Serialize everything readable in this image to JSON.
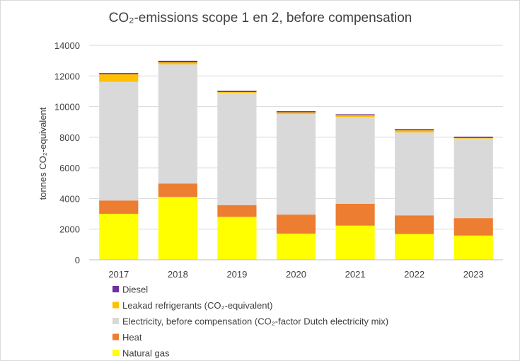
{
  "chart_data": {
    "type": "bar",
    "stacked": true,
    "title": "CO₂-emissions scope 1 en 2, before compensation",
    "xlabel": "",
    "ylabel": "tonnes CO₂-equivalent",
    "ylim": [
      0,
      14000
    ],
    "yticks": [
      "0",
      "2000",
      "4000",
      "6000",
      "8000",
      "10000",
      "12000",
      "14000"
    ],
    "grid": true,
    "legend_position": "bottom",
    "categories": [
      "2017",
      "2018",
      "2019",
      "2020",
      "2021",
      "2022",
      "2023"
    ],
    "series": [
      {
        "name": "Natural gas",
        "color": "#ffff00",
        "values": [
          3000,
          4100,
          2800,
          1700,
          2230,
          1680,
          1580
        ]
      },
      {
        "name": "Heat",
        "color": "#ed7d31",
        "values": [
          870,
          880,
          770,
          1250,
          1420,
          1220,
          1140
        ]
      },
      {
        "name": "Electricity, before compensation (CO₂-factor Dutch electricity mix)",
        "color": "#d9d9d9",
        "values": [
          7750,
          7780,
          7330,
          6560,
          5680,
          5410,
          5200
        ]
      },
      {
        "name": "Leakad refrigerants (CO₂-equivalent)",
        "color": "#ffc000",
        "values": [
          490,
          130,
          50,
          120,
          120,
          140,
          30
        ]
      },
      {
        "name": "Diesel",
        "color": "#7030a0",
        "values": [
          80,
          100,
          80,
          70,
          50,
          80,
          80
        ]
      }
    ],
    "legend_order": [
      4,
      3,
      2,
      1,
      0
    ]
  }
}
